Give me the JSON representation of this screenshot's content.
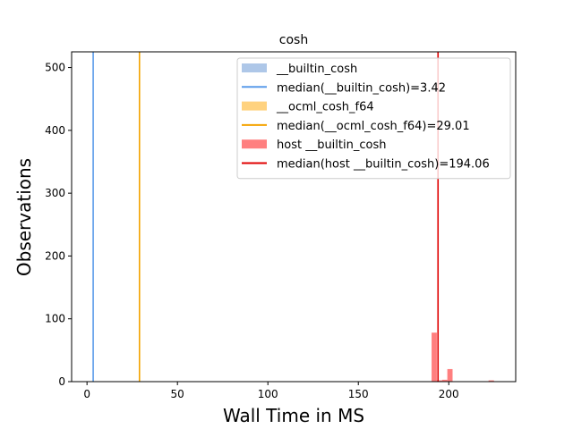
{
  "chart_data": {
    "type": "bar",
    "title": "cosh",
    "xlabel": "Wall Time in MS",
    "ylabel": "Observations",
    "xlim": [
      -8.5,
      237
    ],
    "ylim": [
      0,
      525
    ],
    "xticks": [
      0,
      50,
      100,
      150,
      200
    ],
    "yticks": [
      0,
      100,
      200,
      300,
      400,
      500
    ],
    "grid": false,
    "legend_position": "top-right",
    "histograms": [
      {
        "name": "__builtin_cosh",
        "color": "#aec7e8",
        "bins": []
      },
      {
        "name": "__ocml_cosh_f64",
        "color": "#ffd27f",
        "bins": []
      },
      {
        "name": "host __builtin_cosh",
        "color": "#ff7f7f",
        "bins": [
          {
            "x0": 190.5,
            "x1": 193.4,
            "count": 78
          },
          {
            "x0": 193.4,
            "x1": 196.3,
            "count": 2
          },
          {
            "x0": 196.3,
            "x1": 199.2,
            "count": 3
          },
          {
            "x0": 199.2,
            "x1": 202.1,
            "count": 20
          },
          {
            "x0": 222.0,
            "x1": 225.0,
            "count": 2
          }
        ]
      }
    ],
    "medians": [
      {
        "name": "median(__builtin_cosh)=3.42",
        "value": 3.42,
        "color": "#5a9bea"
      },
      {
        "name": "median(__ocml_cosh_f64)=29.01",
        "value": 29.01,
        "color": "#f4a300"
      },
      {
        "name": "median(host __builtin_cosh)=194.06",
        "value": 194.06,
        "color": "#e00000"
      }
    ],
    "legend": [
      {
        "label": "__builtin_cosh",
        "kind": "patch",
        "color": "#aec7e8"
      },
      {
        "label": "median(__builtin_cosh)=3.42",
        "kind": "line",
        "color": "#5a9bea"
      },
      {
        "label": "__ocml_cosh_f64",
        "kind": "patch",
        "color": "#ffd27f"
      },
      {
        "label": "median(__ocml_cosh_f64)=29.01",
        "kind": "line",
        "color": "#f4a300"
      },
      {
        "label": "host __builtin_cosh",
        "kind": "patch",
        "color": "#ff7f7f"
      },
      {
        "label": "median(host __builtin_cosh)=194.06",
        "kind": "line",
        "color": "#e00000"
      }
    ]
  }
}
